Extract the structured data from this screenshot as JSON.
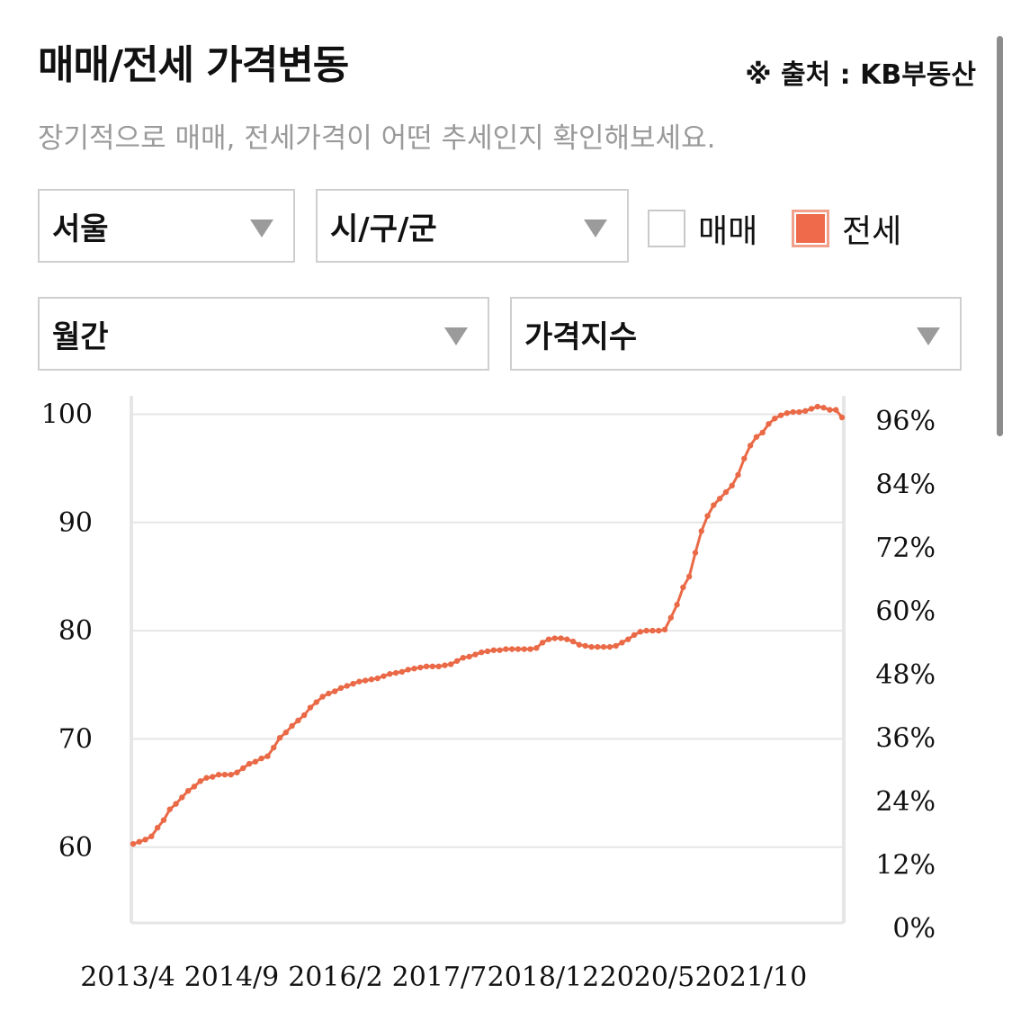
{
  "header": {
    "title": "매매/전세 가격변동",
    "source": "※ 출처 : KB부동산",
    "subtitle": "장기적으로 매매, 전세가격이 어떤 추세인지 확인해보세요."
  },
  "filters": {
    "region": "서울",
    "district": "시/구/군",
    "period": "월간",
    "metric": "가격지수"
  },
  "toggles": {
    "sale": {
      "label": "매매",
      "checked": false
    },
    "jeonse": {
      "label": "전세",
      "checked": true
    }
  },
  "colors": {
    "series": "#ea6a47",
    "grid": "#e6e6e6",
    "checked": "#ee6a4b"
  },
  "chart_data": {
    "type": "line",
    "xlabel": "",
    "ylabel": "",
    "ylim": [
      53,
      101.2
    ],
    "y_ticks": [
      60,
      70,
      80,
      90,
      100
    ],
    "y2_ticks": [
      "0%",
      "12%",
      "24%",
      "36%",
      "48%",
      "60%",
      "72%",
      "84%",
      "96%"
    ],
    "x_ticks": [
      "2013/4",
      "2014/9",
      "2016/2",
      "2017/7",
      "2018/12",
      "2020/5",
      "2021/10"
    ],
    "series": [
      {
        "values": [
          60.3,
          60.5,
          60.7,
          61.0,
          61.8,
          62.5,
          63.5,
          64.0,
          64.6,
          65.2,
          65.6,
          66.1,
          66.4,
          66.5,
          66.7,
          66.7,
          66.7,
          66.9,
          67.3,
          67.7,
          67.9,
          68.2,
          68.4,
          69.2,
          70.1,
          70.6,
          71.2,
          71.7,
          72.2,
          72.9,
          73.4,
          73.9,
          74.2,
          74.4,
          74.7,
          74.9,
          75.1,
          75.3,
          75.4,
          75.5,
          75.6,
          75.8,
          76.0,
          76.1,
          76.2,
          76.4,
          76.5,
          76.6,
          76.7,
          76.7,
          76.7,
          76.8,
          76.9,
          77.2,
          77.5,
          77.6,
          77.8,
          78.0,
          78.1,
          78.2,
          78.2,
          78.3,
          78.3,
          78.3,
          78.3,
          78.3,
          78.4,
          78.9,
          79.2,
          79.3,
          79.3,
          79.2,
          79.0,
          78.7,
          78.6,
          78.5,
          78.5,
          78.5,
          78.5,
          78.6,
          78.9,
          79.2,
          79.6,
          79.9,
          80.0,
          80.0,
          80.0,
          80.1,
          81.2,
          82.4,
          84.0,
          85.0,
          87.2,
          89.2,
          90.6,
          91.6,
          92.2,
          92.8,
          93.4,
          94.4,
          95.9,
          97.1,
          97.9,
          98.3,
          99.1,
          99.6,
          99.9,
          100.1,
          100.2,
          100.2,
          100.3,
          100.5,
          100.7,
          100.6,
          100.4,
          100.4,
          99.7
        ]
      }
    ]
  }
}
